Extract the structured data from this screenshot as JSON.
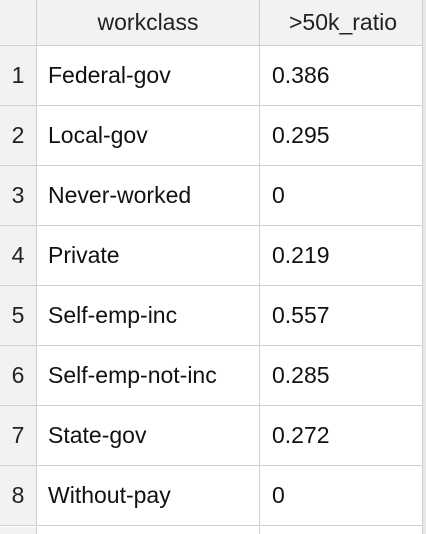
{
  "table": {
    "columns": [
      "workclass",
      ">50k_ratio"
    ],
    "rows": [
      {
        "index": "1",
        "workclass": "Federal-gov",
        "ratio": "0.386"
      },
      {
        "index": "2",
        "workclass": "Local-gov",
        "ratio": "0.295"
      },
      {
        "index": "3",
        "workclass": "Never-worked",
        "ratio": "0"
      },
      {
        "index": "4",
        "workclass": "Private",
        "ratio": "0.219"
      },
      {
        "index": "5",
        "workclass": "Self-emp-inc",
        "ratio": "0.557"
      },
      {
        "index": "6",
        "workclass": "Self-emp-not-inc",
        "ratio": "0.285"
      },
      {
        "index": "7",
        "workclass": "State-gov",
        "ratio": "0.272"
      },
      {
        "index": "8",
        "workclass": "Without-pay",
        "ratio": "0"
      }
    ]
  }
}
